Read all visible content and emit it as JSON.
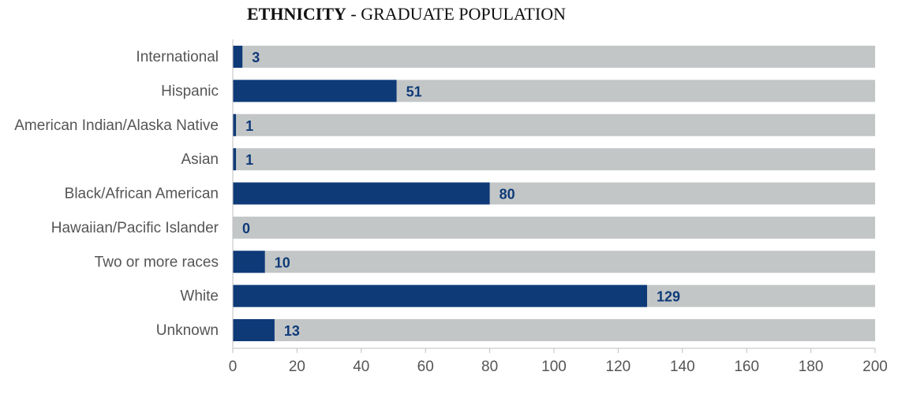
{
  "chart_data": {
    "type": "bar",
    "orientation": "horizontal",
    "title_bold": "ETHNICITY",
    "title_rest": " - GRADUATE POPULATION",
    "categories": [
      "International",
      "Hispanic",
      "American Indian/Alaska Native",
      "Asian",
      "Black/African American",
      "Hawaiian/Pacific Islander",
      "Two or more races",
      "White",
      "Unknown"
    ],
    "values": [
      3,
      51,
      1,
      1,
      80,
      0,
      10,
      129,
      13
    ],
    "xlim": [
      0,
      200
    ],
    "xticks": [
      0,
      20,
      40,
      60,
      80,
      100,
      120,
      140,
      160,
      180,
      200
    ],
    "grid": false,
    "legend": "none",
    "colors": {
      "bar": "#0E3A78",
      "track": "#C3C6C7",
      "value_label": "#0E3A78",
      "category_label": "#555555",
      "axis": "#BFBFBF",
      "tick_label": "#555555"
    }
  }
}
